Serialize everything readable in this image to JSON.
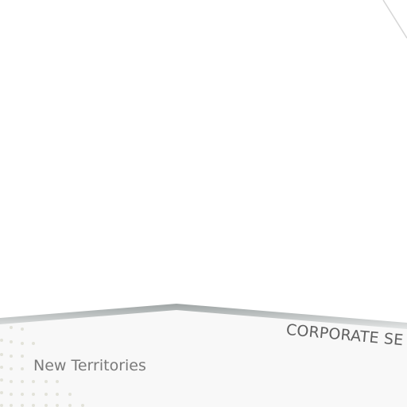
{
  "labels": {
    "corporate": "CORPORATE SE",
    "region": "New Territories"
  },
  "colors": {
    "background": "#ffffff",
    "panel_fill": "#f8f8f8",
    "panel_edge": "#a4aaaa",
    "dot": "#e2e2d9",
    "line": "#d6d6d6",
    "corporate_text": "#5f5f5f",
    "region_text": "#7a7a7a"
  }
}
